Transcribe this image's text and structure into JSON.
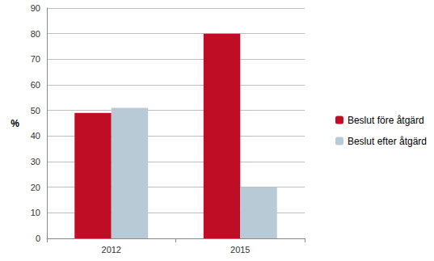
{
  "chart_data": {
    "type": "bar",
    "categories": [
      "2012",
      "2015"
    ],
    "series": [
      {
        "name": "Beslut före åtgärd",
        "color": "#c00d26",
        "values": [
          49,
          80
        ]
      },
      {
        "name": "Beslut efter åtgärd",
        "color": "#b7cad6",
        "values": [
          51,
          20
        ]
      }
    ],
    "y_label": "%",
    "ylim": [
      0,
      90
    ],
    "yticks": [
      0,
      10,
      20,
      30,
      40,
      50,
      60,
      70,
      80,
      90
    ],
    "grid": true,
    "legend": "right"
  }
}
